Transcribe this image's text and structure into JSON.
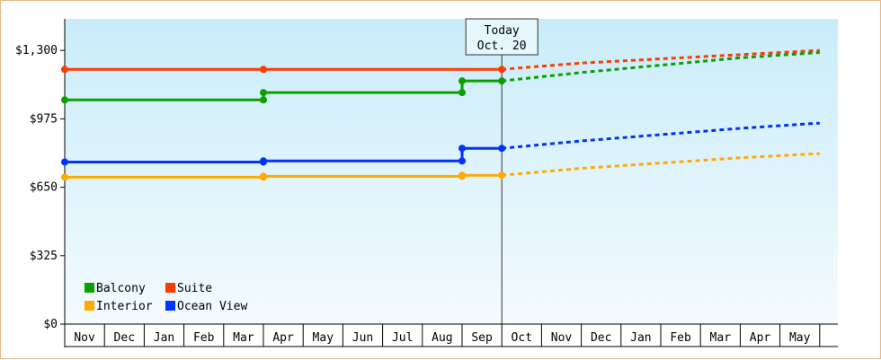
{
  "chart_data": {
    "type": "line",
    "today_label": [
      "Today",
      "Oct. 20"
    ],
    "y_ticks": [
      "$0",
      "$325",
      "$650",
      "$975",
      "$1,300"
    ],
    "y_tick_values": [
      0,
      325,
      650,
      975,
      1300
    ],
    "ylim": [
      0,
      1450
    ],
    "x_categories": [
      "Nov",
      "Dec",
      "Jan",
      "Feb",
      "Mar",
      "Apr",
      "May",
      "Jun",
      "Jul",
      "Aug",
      "Sep",
      "Oct",
      "Nov",
      "Dec",
      "Jan",
      "Feb",
      "Mar",
      "Apr",
      "May"
    ],
    "today_index": 11,
    "forecast_end_index": 19,
    "series": [
      {
        "name": "Suite",
        "color": "#ff3b00",
        "points": [
          [
            0,
            1210
          ],
          [
            5,
            1210
          ],
          [
            11,
            1210
          ]
        ],
        "forecast": [
          [
            11,
            1210
          ],
          [
            13,
            1240
          ],
          [
            15,
            1260
          ],
          [
            17,
            1280
          ],
          [
            19,
            1300
          ]
        ]
      },
      {
        "name": "Balcony",
        "color": "#0aa000",
        "points": [
          [
            0,
            1065
          ],
          [
            5,
            1065
          ],
          [
            5,
            1100
          ],
          [
            10,
            1100
          ],
          [
            10,
            1155
          ],
          [
            11,
            1155
          ]
        ],
        "forecast": [
          [
            11,
            1155
          ],
          [
            13,
            1195
          ],
          [
            15,
            1230
          ],
          [
            17,
            1265
          ],
          [
            19,
            1290
          ]
        ]
      },
      {
        "name": "Ocean View",
        "color": "#0033ff",
        "points": [
          [
            0,
            770
          ],
          [
            5,
            770
          ],
          [
            5,
            775
          ],
          [
            10,
            775
          ],
          [
            10,
            835
          ],
          [
            11,
            835
          ]
        ],
        "forecast": [
          [
            11,
            835
          ],
          [
            13,
            870
          ],
          [
            15,
            900
          ],
          [
            17,
            930
          ],
          [
            19,
            955
          ]
        ]
      },
      {
        "name": "Interior",
        "color": "#ffaa00",
        "points": [
          [
            0,
            698
          ],
          [
            5,
            698
          ],
          [
            5,
            702
          ],
          [
            10,
            702
          ],
          [
            10,
            707
          ],
          [
            11,
            707
          ]
        ],
        "forecast": [
          [
            11,
            707
          ],
          [
            13,
            740
          ],
          [
            15,
            765
          ],
          [
            17,
            790
          ],
          [
            19,
            810
          ]
        ]
      }
    ],
    "legend": [
      {
        "name": "Balcony",
        "color": "#0aa000"
      },
      {
        "name": "Suite",
        "color": "#ff3b00"
      },
      {
        "name": "Interior",
        "color": "#ffaa00"
      },
      {
        "name": "Ocean View",
        "color": "#0033ff"
      }
    ],
    "grid": false,
    "legend_position": "bottom-left"
  }
}
